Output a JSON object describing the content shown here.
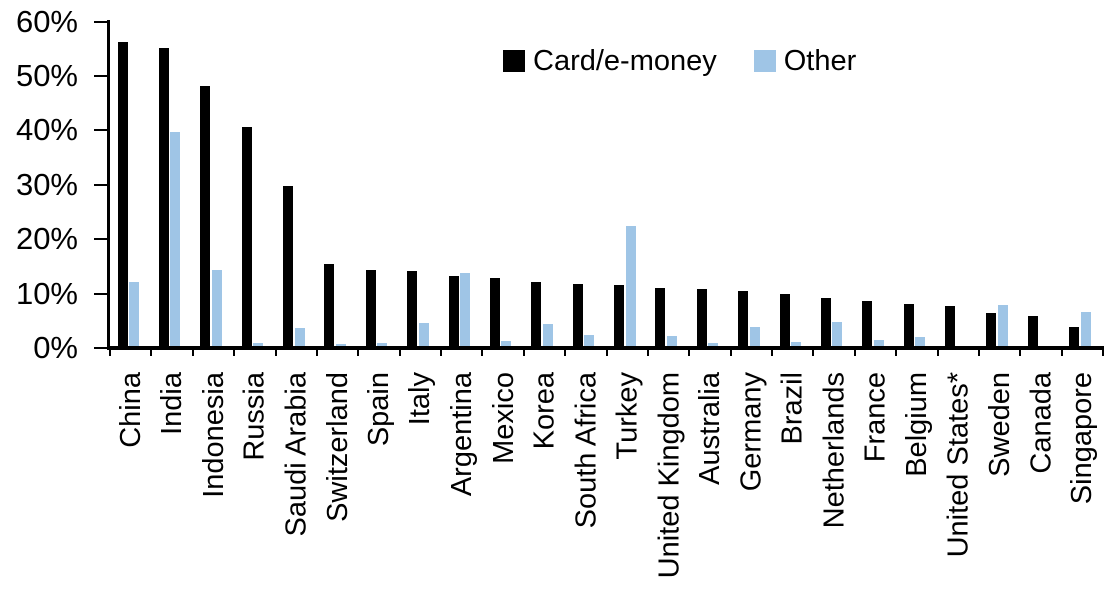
{
  "chart_data": {
    "type": "bar",
    "title": "",
    "xlabel": "",
    "ylabel": "",
    "categories": [
      "China",
      "India",
      "Indonesia",
      "Russia",
      "Saudi Arabia",
      "Switzerland",
      "Spain",
      "Italy",
      "Argentina",
      "Mexico",
      "Korea",
      "South Africa",
      "Turkey",
      "United Kingdom",
      "Australia",
      "Germany",
      "Brazil",
      "Netherlands",
      "France",
      "Belgium",
      "United States*",
      "Sweden",
      "Canada",
      "Singapore"
    ],
    "series": [
      {
        "name": "Card/e-money",
        "color": "#000000",
        "values": [
          56.3,
          55.1,
          48.2,
          40.6,
          29.8,
          15.4,
          14.3,
          14.1,
          13.3,
          12.8,
          12.2,
          11.7,
          11.6,
          11.0,
          10.8,
          10.4,
          9.9,
          9.2,
          8.6,
          8.1,
          7.8,
          6.4,
          5.8,
          3.8
        ]
      },
      {
        "name": "Other",
        "color": "#9FC5E6",
        "values": [
          12.2,
          39.7,
          14.4,
          0.9,
          3.7,
          0.8,
          1.0,
          4.6,
          13.8,
          1.3,
          4.5,
          2.3,
          22.4,
          2.2,
          0.9,
          3.9,
          1.1,
          4.8,
          1.5,
          2.0,
          0.4,
          7.9,
          0,
          6.6
        ]
      }
    ],
    "ylim": [
      0,
      60
    ],
    "yticks": {
      "values": [
        0,
        10,
        20,
        30,
        40,
        50,
        60
      ],
      "labels": [
        "0%",
        "10%",
        "20%",
        "30%",
        "40%",
        "50%",
        "60%"
      ]
    },
    "legend_position": "top",
    "grid": false
  }
}
